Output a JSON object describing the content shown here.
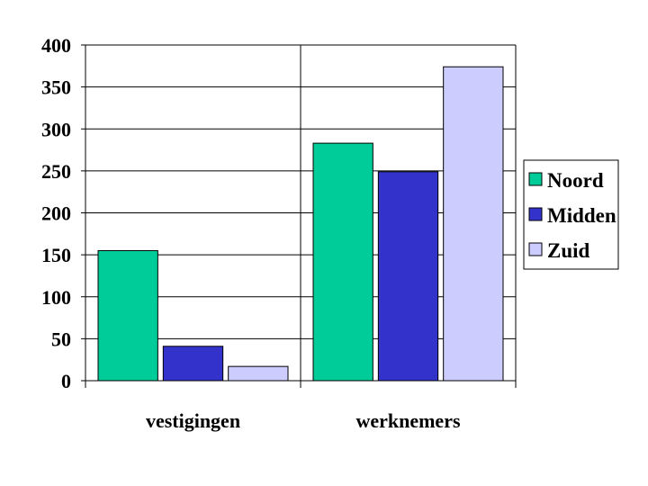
{
  "chart_data": {
    "type": "bar",
    "categories": [
      "vestigingen",
      "werknemers"
    ],
    "series": [
      {
        "name": "Noord",
        "values": [
          155,
          283
        ],
        "color": "#00cc99"
      },
      {
        "name": "Midden",
        "values": [
          41,
          249
        ],
        "color": "#3333cc"
      },
      {
        "name": "Zuid",
        "values": [
          17,
          374
        ],
        "color": "#ccccff"
      }
    ],
    "ylim": [
      0,
      400
    ],
    "yticks": [
      "0",
      "50",
      "100",
      "150",
      "200",
      "250",
      "300",
      "350",
      "400"
    ],
    "grid": true,
    "legend": "right"
  }
}
